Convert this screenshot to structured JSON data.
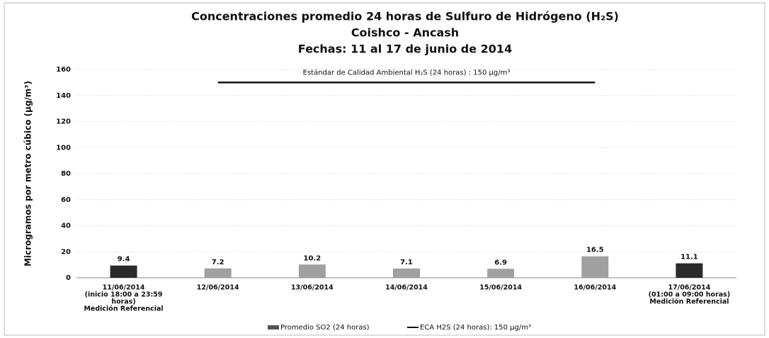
{
  "chart_data": {
    "type": "bar",
    "title": [
      "Concentraciones promedio 24 horas de Sulfuro de Hidrógeno (H₂S)",
      "Coishco - Ancash",
      "Fechas: 11 al 17 de junio de 2014"
    ],
    "y_label": "Microgramos por metro cúbico (µg/m³)",
    "categories": [
      [
        "11/06/2014",
        "(inicio 18:00 a 23:59",
        "horas)",
        "Medición Referencial"
      ],
      [
        "12/06/2014"
      ],
      [
        "13/06/2014"
      ],
      [
        "14/06/2014"
      ],
      [
        "15/06/2014"
      ],
      [
        "16/06/2014"
      ],
      [
        "17/06/2014",
        "(01:00 a 09:00 horas)",
        "Medición Referencial"
      ]
    ],
    "series": [
      {
        "name": "Promedio SO2 (24 horas)",
        "type": "bar",
        "color": "#a0a0a0",
        "colors": [
          "#2b2b2b",
          "#a0a0a0",
          "#a0a0a0",
          "#a0a0a0",
          "#a0a0a0",
          "#a0a0a0",
          "#2b2b2b"
        ],
        "values": [
          9.4,
          7.2,
          10.2,
          7.1,
          6.9,
          16.5,
          11.1
        ]
      },
      {
        "name": "ECA H2S (24 horas): 150 µg/m³",
        "type": "line",
        "color": "#111111",
        "values": [
          null,
          150,
          150,
          150,
          150,
          150,
          null
        ]
      }
    ],
    "annotation": "Estándar de Calidad Ambiental H₂S (24 horas) : 150 µg/m³",
    "ylim": [
      0,
      160
    ],
    "yticks": [
      0,
      20,
      40,
      60,
      80,
      100,
      120,
      140,
      160
    ],
    "grid": true,
    "legend": "bottom"
  }
}
